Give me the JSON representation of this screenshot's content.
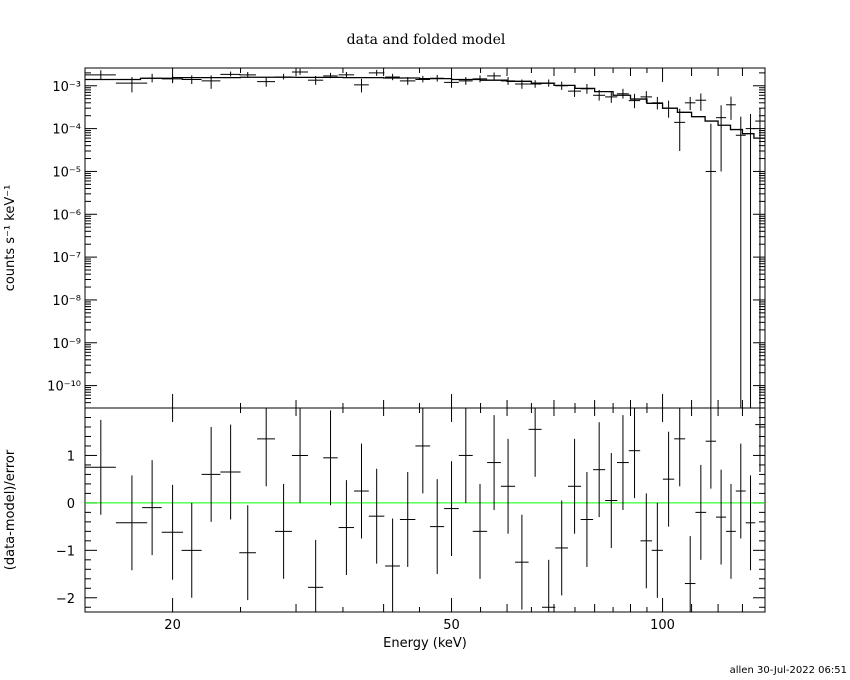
{
  "chart_data": [
    {
      "type": "scatter",
      "title": "data and folded model",
      "xlabel": "",
      "ylabel": "counts s⁻¹ keV⁻¹",
      "xscale": "log",
      "yscale": "log",
      "xlim": [
        15,
        140
      ],
      "ylim": [
        3e-11,
        0.0026
      ],
      "y_tick_labels": [
        "10⁻³",
        "10⁻⁴",
        "10⁻⁵",
        "10⁻⁶",
        "10⁻⁷",
        "10⁻⁸",
        "10⁻⁹",
        "10⁻¹⁰"
      ],
      "series": [
        {
          "style": "crosses with error bars",
          "x": [
            15.8,
            17.5,
            18.7,
            20.0,
            21.3,
            22.7,
            24.2,
            25.6,
            27.2,
            28.8,
            30.4,
            32.0,
            33.6,
            35.4,
            37.2,
            39.1,
            41.2,
            43.3,
            45.5,
            47.7,
            50.0,
            52.4,
            54.9,
            57.5,
            60.2,
            63.0,
            65.8,
            68.8,
            71.8,
            74.9,
            78.0,
            81.2,
            84.5,
            87.8,
            91.2,
            94.8,
            98.3,
            102.0,
            105.8,
            109.5,
            113.4,
            117.2,
            121.2,
            125.2,
            129.3,
            133.5,
            137.7
          ],
          "xerr": [
            0.8,
            0.9,
            0.6,
            0.7,
            0.7,
            0.7,
            0.8,
            0.7,
            0.8,
            0.8,
            0.8,
            0.8,
            0.8,
            0.9,
            0.9,
            1.0,
            1.0,
            1.1,
            1.1,
            1.1,
            1.2,
            1.2,
            1.3,
            1.3,
            1.4,
            1.4,
            1.4,
            1.5,
            1.5,
            1.6,
            1.6,
            1.6,
            1.7,
            1.7,
            1.7,
            1.8,
            1.8,
            1.9,
            1.9,
            1.9,
            2.0,
            2.0,
            2.0,
            2.0,
            2.1,
            2.1,
            2.1
          ],
          "y": [
            0.0018,
            0.00115,
            0.0015,
            0.00145,
            0.0014,
            0.0013,
            0.00185,
            0.0018,
            0.00125,
            0.0016,
            0.0021,
            0.00135,
            0.0017,
            0.0018,
            0.00105,
            0.002,
            0.0016,
            0.0013,
            0.0014,
            0.0015,
            0.0012,
            0.0013,
            0.00145,
            0.0017,
            0.0013,
            0.0011,
            0.0011,
            0.00115,
            0.001,
            0.00075,
            0.00085,
            0.0006,
            0.00055,
            0.00065,
            0.00045,
            0.00055,
            0.0004,
            0.0003,
            0.00014,
            0.0004,
            0.00046,
            1e-05,
            0.00018,
            0.00036,
            7e-05,
            0.0001,
            0.00015
          ],
          "yerr_lo": [
            0.0004,
            0.00045,
            0.0003,
            0.0003,
            0.0003,
            0.00045,
            0.0002,
            0.0002,
            0.0003,
            0.0002,
            0.0003,
            0.0003,
            0.0002,
            0.0002,
            0.00035,
            0.0003,
            0.00025,
            0.00025,
            0.0002,
            0.00025,
            0.0003,
            0.00025,
            0.00025,
            0.0003,
            0.00025,
            0.00025,
            0.0002,
            0.0002,
            0.0002,
            0.0002,
            0.0002,
            0.00015,
            0.00015,
            0.00015,
            0.00015,
            0.00015,
            0.00012,
            0.00012,
            0.00011,
            0.00013,
            0.0002,
            1e-05,
            0.00017,
            0.0002,
            7e-05,
            0.0001,
            0.00015
          ],
          "yerr_hi": [
            0.0005,
            0.00045,
            0.0004,
            0.00035,
            0.00035,
            0.00045,
            0.0003,
            0.0003,
            0.00035,
            0.0003,
            0.0004,
            0.00035,
            0.0003,
            0.0003,
            0.0004,
            0.00035,
            0.0003,
            0.0003,
            0.0003,
            0.0003,
            0.0003,
            0.0003,
            0.0003,
            0.00035,
            0.0003,
            0.0003,
            0.00025,
            0.00025,
            0.00025,
            0.00025,
            0.00025,
            0.0002,
            0.0002,
            0.0002,
            0.0002,
            0.0002,
            0.00015,
            0.00015,
            0.00015,
            0.00015,
            0.0002,
            0.00012,
            0.00017,
            0.0002,
            0.00012,
            0.00012,
            0.00015
          ]
        },
        {
          "style": "step line (folded model)",
          "x": [
            15.0,
            18.0,
            20.0,
            25.0,
            30.0,
            35.0,
            40.0,
            45.0,
            50.0,
            55.0,
            60.0,
            65.0,
            70.0,
            75.0,
            80.0,
            85.0,
            90.0,
            95.0,
            100.0,
            105.0,
            110.0,
            115.0,
            120.0,
            125.0,
            130.0,
            135.0,
            140.0
          ],
          "y": [
            0.0014,
            0.0015,
            0.00155,
            0.00158,
            0.00157,
            0.00155,
            0.00152,
            0.00147,
            0.0014,
            0.00135,
            0.00127,
            0.00115,
            0.00102,
            0.00087,
            0.00073,
            0.0006,
            0.00049,
            0.00039,
            0.0003,
            0.00024,
            0.00019,
            0.00015,
            0.00012,
            9.5e-05,
            7.6e-05,
            6e-05,
            5e-05
          ]
        }
      ]
    },
    {
      "type": "scatter",
      "title": "",
      "xlabel": "Energy (keV)",
      "ylabel": "(data-model)/error",
      "xscale": "log",
      "xlim": [
        15,
        140
      ],
      "ylim": [
        -2.3,
        2.0
      ],
      "x_ticks": [
        20,
        50,
        100
      ],
      "y_ticks": [
        -2,
        -1,
        0,
        1
      ],
      "zero_line_color": "#00ff00",
      "series": [
        {
          "style": "crosses with error bars",
          "x": [
            15.8,
            17.5,
            18.7,
            20.0,
            21.3,
            22.7,
            24.2,
            25.6,
            27.2,
            28.8,
            30.4,
            32.0,
            33.6,
            35.4,
            37.2,
            39.1,
            41.2,
            43.3,
            45.5,
            47.7,
            50.0,
            52.4,
            54.9,
            57.5,
            60.2,
            63.0,
            65.8,
            68.8,
            71.8,
            74.9,
            78.0,
            81.2,
            84.5,
            87.8,
            91.2,
            94.8,
            98.3,
            102.0,
            105.8,
            109.5,
            113.4,
            117.2,
            121.2,
            125.2,
            129.3,
            133.5,
            137.7
          ],
          "xerr": [
            0.8,
            0.9,
            0.6,
            0.7,
            0.7,
            0.7,
            0.8,
            0.7,
            0.8,
            0.8,
            0.8,
            0.8,
            0.8,
            0.9,
            0.9,
            1.0,
            1.0,
            1.1,
            1.1,
            1.1,
            1.2,
            1.2,
            1.3,
            1.3,
            1.4,
            1.4,
            1.4,
            1.5,
            1.5,
            1.6,
            1.6,
            1.6,
            1.7,
            1.7,
            1.7,
            1.8,
            1.8,
            1.9,
            1.9,
            1.9,
            2.0,
            2.0,
            2.0,
            2.0,
            2.1,
            2.1,
            2.1
          ],
          "y": [
            0.75,
            -0.42,
            -0.1,
            -0.62,
            -1.0,
            0.6,
            0.65,
            -1.05,
            1.35,
            -0.6,
            1.0,
            -1.78,
            0.95,
            -0.52,
            0.25,
            -0.28,
            -1.33,
            -0.35,
            1.2,
            -0.5,
            -0.12,
            1.0,
            -0.6,
            0.85,
            0.35,
            -1.25,
            1.55,
            -2.2,
            -0.95,
            0.35,
            -0.35,
            0.7,
            0.05,
            0.85,
            1.1,
            -0.8,
            -1.0,
            0.5,
            1.35,
            -1.7,
            -0.2,
            1.3,
            -0.3,
            -0.6,
            0.25,
            -0.42,
            1.65
          ],
          "yerr": [
            1.0,
            1.0,
            1.0,
            1.0,
            1.0,
            1.0,
            1.0,
            1.0,
            1.0,
            1.0,
            1.0,
            1.0,
            1.0,
            1.0,
            1.0,
            1.0,
            1.0,
            1.0,
            1.0,
            1.0,
            1.0,
            1.0,
            1.0,
            1.0,
            1.0,
            1.0,
            1.0,
            1.0,
            1.0,
            1.0,
            1.0,
            1.0,
            1.0,
            1.0,
            1.0,
            1.0,
            1.0,
            1.0,
            1.0,
            1.0,
            1.0,
            1.0,
            1.0,
            1.0,
            1.0,
            1.0,
            1.0
          ]
        }
      ]
    }
  ],
  "footer_stamp": "allen 30-Jul-2022 06:51",
  "colors": {
    "axes": "#000000",
    "data": "#000000",
    "zero_line": "#00ff00",
    "background": "#ffffff"
  }
}
